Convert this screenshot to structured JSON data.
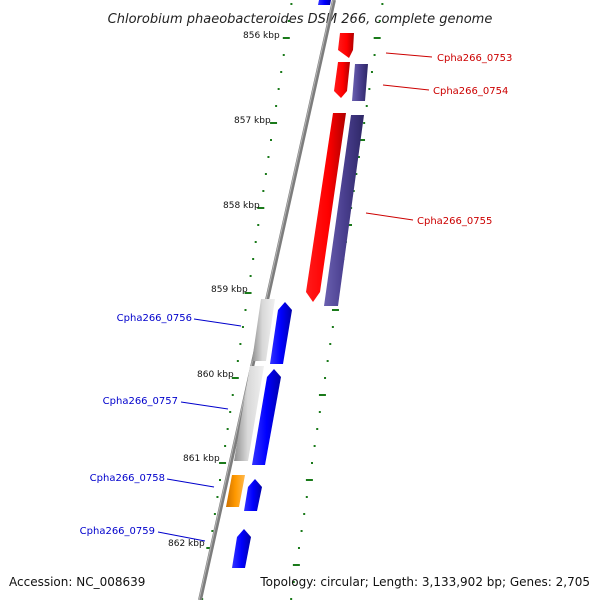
{
  "title": "Chlorobium phaeobacteroides DSM 266, complete genome",
  "accession": "Accession: NC_008639",
  "topology": "Topology: circular; Length: 3,133,902 bp; Genes: 2,705",
  "scale_labels": [
    "856 kbp",
    "857 kbp",
    "858 kbp",
    "859 kbp",
    "860 kbp",
    "861 kbp",
    "862 kbp"
  ],
  "genes": [
    {
      "name": "Cpha266_0753",
      "strand": "forward",
      "color": "#cc0000"
    },
    {
      "name": "Cpha266_0754",
      "strand": "forward",
      "color": "#cc0000"
    },
    {
      "name": "Cpha266_0755",
      "strand": "forward",
      "color": "#cc0000"
    },
    {
      "name": "Cpha266_0756",
      "strand": "reverse",
      "color": "#0000cc"
    },
    {
      "name": "Cpha266_0757",
      "strand": "reverse",
      "color": "#0000cc"
    },
    {
      "name": "Cpha266_0758",
      "strand": "reverse",
      "color": "#0000cc"
    },
    {
      "name": "Cpha266_0759",
      "strand": "reverse",
      "color": "#0000cc"
    }
  ],
  "colors": {
    "axis": "#8a8a8a",
    "ticks": "#1a7a1a",
    "red_feature": "#ff0000",
    "purple_feature": "#4a3f8f",
    "blue_feature": "#0000ff",
    "gray_feature": "#bdbdbd",
    "orange_feature": "#ff9900"
  }
}
